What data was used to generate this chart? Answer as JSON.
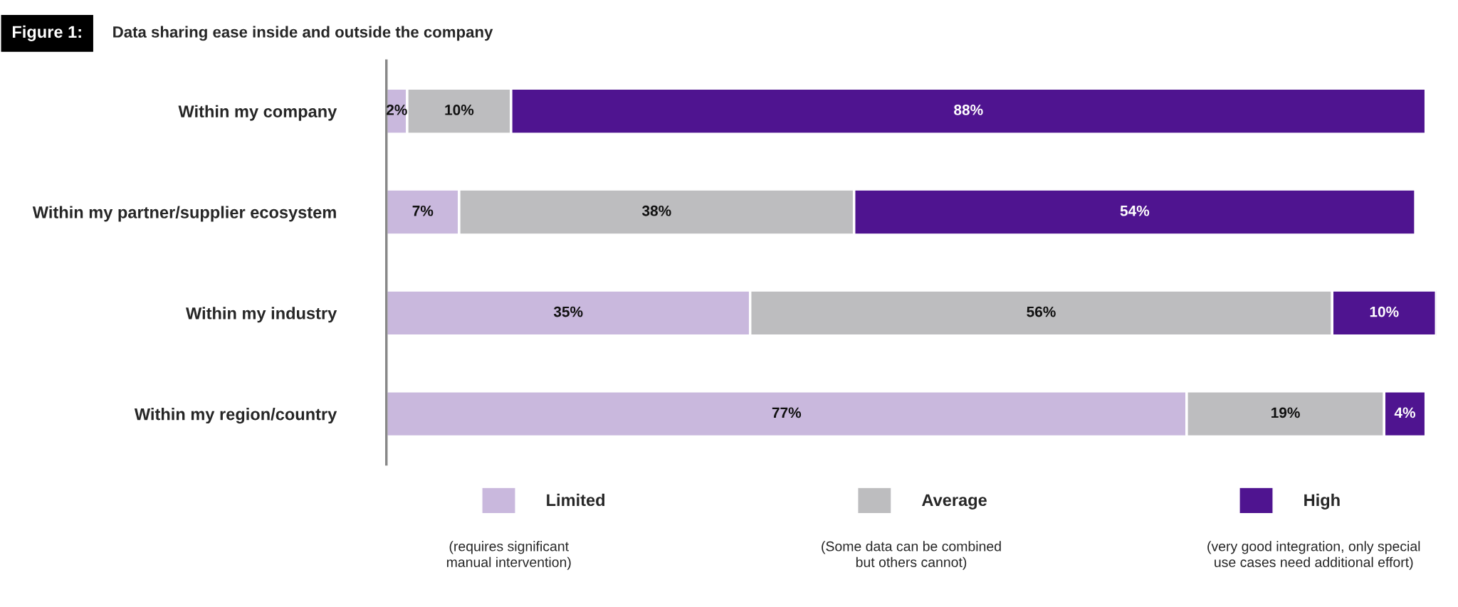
{
  "chart_data": {
    "type": "bar",
    "orientation": "horizontal",
    "stacked": true,
    "title": "Figure 1:",
    "subtitle": "Data sharing ease inside and outside the company",
    "categories": [
      "Within my company",
      "Within my partner/supplier ecosystem",
      "Within my industry",
      "Within my region/country"
    ],
    "series": [
      {
        "name": "Limited",
        "color": "#c9b8dd",
        "values": [
          2,
          7,
          35,
          77
        ],
        "value_labels": [
          "2%",
          "7%",
          "35%",
          "77%"
        ]
      },
      {
        "name": "Average",
        "color": "#bdbdbf",
        "values": [
          10,
          38,
          56,
          19
        ],
        "value_labels": [
          "10%",
          "38%",
          "56%",
          "19%"
        ]
      },
      {
        "name": "High",
        "color": "#4f1490",
        "values": [
          88,
          54,
          10,
          4
        ],
        "value_labels": [
          "88%",
          "54%",
          "10%",
          "4%"
        ]
      }
    ],
    "legend": "bottom",
    "grid": false,
    "annotations": [
      "(requires significant\nmanual intervention)",
      "(Some data can be combined\nbut others cannot)",
      "(very good integration, only special\nuse cases need additional effort)"
    ]
  }
}
